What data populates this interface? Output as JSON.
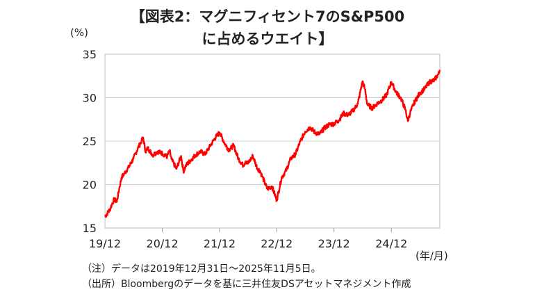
{
  "chart_data": {
    "type": "line",
    "title": "【図表2：マグニフィセント7のS&P500",
    "subtitle": "に占めるウエイト】",
    "ylabel": "(%)",
    "xlabel": "(年/月)",
    "ylim": [
      15,
      35
    ],
    "yticks": [
      15,
      20,
      25,
      30,
      35
    ],
    "xticks": [
      "19/12",
      "20/12",
      "21/12",
      "22/12",
      "23/12",
      "24/12"
    ],
    "grid": true,
    "legend": "none",
    "series": [
      {
        "color": "#ff0000",
        "points": [
          [
            "2019-12-31",
            16.3
          ],
          [
            "2020-01-31",
            17.1
          ],
          [
            "2020-02-15",
            17.8
          ],
          [
            "2020-02-29",
            18.3
          ],
          [
            "2020-03-16",
            18.0
          ],
          [
            "2020-03-31",
            19.5
          ],
          [
            "2020-04-15",
            20.8
          ],
          [
            "2020-04-30",
            21.2
          ],
          [
            "2020-05-31",
            22.0
          ],
          [
            "2020-06-30",
            23.0
          ],
          [
            "2020-07-31",
            24.3
          ],
          [
            "2020-08-15",
            24.8
          ],
          [
            "2020-08-31",
            25.4
          ],
          [
            "2020-09-15",
            23.8
          ],
          [
            "2020-09-30",
            24.2
          ],
          [
            "2020-10-31",
            23.4
          ],
          [
            "2020-11-30",
            23.8
          ],
          [
            "2020-12-31",
            23.6
          ],
          [
            "2021-01-31",
            23.2
          ],
          [
            "2021-02-15",
            23.9
          ],
          [
            "2021-02-28",
            22.9
          ],
          [
            "2021-03-31",
            21.8
          ],
          [
            "2021-04-30",
            23.3
          ],
          [
            "2021-05-15",
            21.5
          ],
          [
            "2021-05-31",
            22.2
          ],
          [
            "2021-06-30",
            22.8
          ],
          [
            "2021-07-31",
            23.4
          ],
          [
            "2021-08-31",
            23.8
          ],
          [
            "2021-09-30",
            23.5
          ],
          [
            "2021-10-31",
            24.4
          ],
          [
            "2021-11-30",
            25.3
          ],
          [
            "2021-12-31",
            26.0
          ],
          [
            "2022-01-31",
            24.8
          ],
          [
            "2022-02-28",
            24.0
          ],
          [
            "2022-03-31",
            24.5
          ],
          [
            "2022-04-30",
            23.0
          ],
          [
            "2022-05-31",
            22.2
          ],
          [
            "2022-06-15",
            22.7
          ],
          [
            "2022-06-30",
            22.4
          ],
          [
            "2022-07-31",
            23.3
          ],
          [
            "2022-08-31",
            21.8
          ],
          [
            "2022-09-15",
            21.6
          ],
          [
            "2022-09-30",
            20.9
          ],
          [
            "2022-10-31",
            19.5
          ],
          [
            "2022-11-30",
            19.8
          ],
          [
            "2022-12-31",
            18.2
          ],
          [
            "2023-01-31",
            20.8
          ],
          [
            "2023-02-28",
            21.6
          ],
          [
            "2023-03-31",
            23.0
          ],
          [
            "2023-04-30",
            23.5
          ],
          [
            "2023-05-31",
            25.0
          ],
          [
            "2023-06-30",
            26.1
          ],
          [
            "2023-07-31",
            26.6
          ],
          [
            "2023-08-31",
            26.0
          ],
          [
            "2023-09-30",
            25.8
          ],
          [
            "2023-10-31",
            26.5
          ],
          [
            "2023-11-30",
            26.9
          ],
          [
            "2023-12-31",
            27.0
          ],
          [
            "2024-01-31",
            27.4
          ],
          [
            "2024-02-29",
            28.2
          ],
          [
            "2024-03-31",
            28.0
          ],
          [
            "2024-04-30",
            28.5
          ],
          [
            "2024-05-31",
            29.3
          ],
          [
            "2024-06-30",
            31.9
          ],
          [
            "2024-07-15",
            31.0
          ],
          [
            "2024-07-31",
            29.2
          ],
          [
            "2024-08-31",
            28.8
          ],
          [
            "2024-09-30",
            29.3
          ],
          [
            "2024-10-31",
            29.7
          ],
          [
            "2024-11-30",
            30.3
          ],
          [
            "2024-12-31",
            31.8
          ],
          [
            "2025-01-31",
            30.6
          ],
          [
            "2025-02-28",
            30.0
          ],
          [
            "2025-03-31",
            28.6
          ],
          [
            "2025-04-15",
            27.3
          ],
          [
            "2025-04-30",
            28.3
          ],
          [
            "2025-05-31",
            29.6
          ],
          [
            "2025-06-30",
            30.5
          ],
          [
            "2025-07-31",
            31.0
          ],
          [
            "2025-08-31",
            31.8
          ],
          [
            "2025-09-30",
            32.0
          ],
          [
            "2025-10-31",
            32.8
          ],
          [
            "2025-11-05",
            33.2
          ]
        ]
      }
    ]
  },
  "notes": {
    "note1": "（注）データは2019年12月31日～2025年11月5日。",
    "note2": "（出所）Bloombergのデータを基に三井住友DSアセットマネジメント作成"
  }
}
